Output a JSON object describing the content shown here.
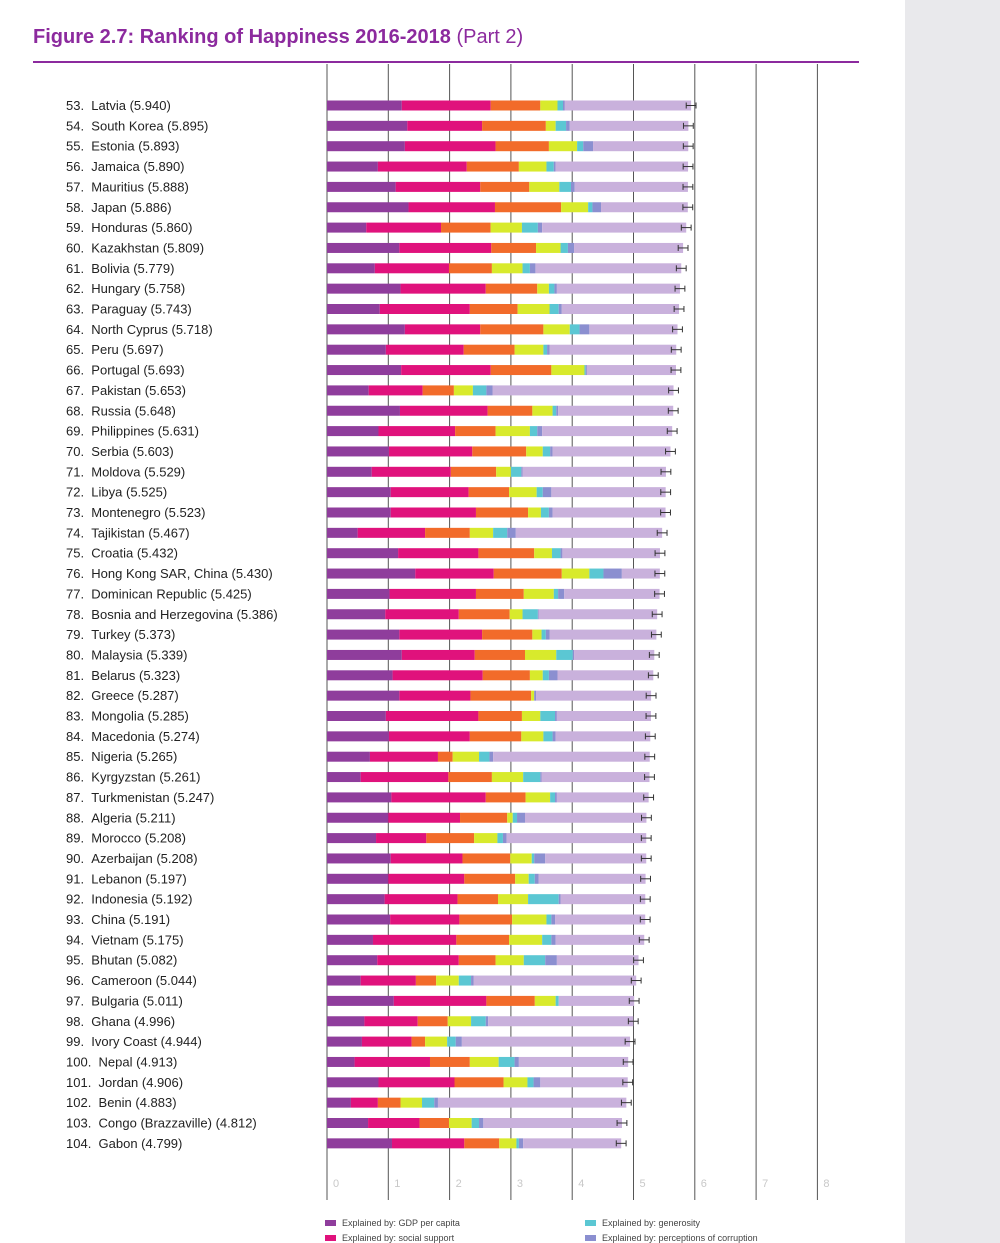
{
  "figure": {
    "title": "Figure 2.7: Ranking of Happiness 2016-2018",
    "title_suffix": "(Part 2)"
  },
  "chart_data": {
    "type": "bar",
    "orientation": "horizontal",
    "stacked": true,
    "title": "Figure 2.7: Ranking of Happiness 2016-2018 (Part 2)",
    "xlim": [
      0,
      8
    ],
    "x_ticks": [
      "0",
      "1",
      "2",
      "3",
      "4",
      "5",
      "6",
      "7",
      "8"
    ],
    "colors": {
      "gdp": "#8f3d9c",
      "social": "#e0127c",
      "health": "#f26b2a",
      "freedom": "#d8ea2c",
      "generosity": "#5bc7d3",
      "corruption": "#8b8fd0",
      "dystopia": "#c9b1dc",
      "ci": "#333333",
      "grid": "#555555"
    },
    "legend": [
      {
        "key": "gdp",
        "label": "Explained by: GDP per capita"
      },
      {
        "key": "generosity",
        "label": "Explained by: generosity"
      },
      {
        "key": "social",
        "label": "Explained by: social support"
      },
      {
        "key": "corruption",
        "label": "Explained by: perceptions of corruption"
      }
    ],
    "series_order": [
      "gdp",
      "social",
      "health",
      "freedom",
      "generosity",
      "corruption",
      "dystopia"
    ],
    "rows": [
      {
        "rank": "53.",
        "country": "Latvia",
        "score": 5.94,
        "gdp": 1.22,
        "social": 1.45,
        "health": 0.81,
        "freedom": 0.28,
        "generosity": 0.09,
        "corruption": 0.03
      },
      {
        "rank": "54.",
        "country": "South Korea",
        "score": 5.895,
        "gdp": 1.31,
        "social": 1.22,
        "health": 1.04,
        "freedom": 0.16,
        "generosity": 0.17,
        "corruption": 0.06
      },
      {
        "rank": "55.",
        "country": "Estonia",
        "score": 5.893,
        "gdp": 1.27,
        "social": 1.48,
        "health": 0.87,
        "freedom": 0.46,
        "generosity": 0.1,
        "corruption": 0.16
      },
      {
        "rank": "56.",
        "country": "Jamaica",
        "score": 5.89,
        "gdp": 0.83,
        "social": 1.45,
        "health": 0.85,
        "freedom": 0.45,
        "generosity": 0.12,
        "corruption": 0.03
      },
      {
        "rank": "57.",
        "country": "Mauritius",
        "score": 5.888,
        "gdp": 1.12,
        "social": 1.38,
        "health": 0.8,
        "freedom": 0.49,
        "generosity": 0.19,
        "corruption": 0.06
      },
      {
        "rank": "58.",
        "country": "Japan",
        "score": 5.886,
        "gdp": 1.33,
        "social": 1.41,
        "health": 1.08,
        "freedom": 0.44,
        "generosity": 0.07,
        "corruption": 0.14
      },
      {
        "rank": "59.",
        "country": "Honduras",
        "score": 5.86,
        "gdp": 0.64,
        "social": 1.22,
        "health": 0.81,
        "freedom": 0.51,
        "generosity": 0.26,
        "corruption": 0.07
      },
      {
        "rank": "60.",
        "country": "Kazakhstan",
        "score": 5.809,
        "gdp": 1.18,
        "social": 1.5,
        "health": 0.73,
        "freedom": 0.4,
        "generosity": 0.12,
        "corruption": 0.1
      },
      {
        "rank": "61.",
        "country": "Bolivia",
        "score": 5.779,
        "gdp": 0.78,
        "social": 1.21,
        "health": 0.7,
        "freedom": 0.5,
        "generosity": 0.12,
        "corruption": 0.09
      },
      {
        "rank": "62.",
        "country": "Hungary",
        "score": 5.758,
        "gdp": 1.2,
        "social": 1.39,
        "health": 0.84,
        "freedom": 0.19,
        "generosity": 0.09,
        "corruption": 0.04
      },
      {
        "rank": "63.",
        "country": "Paraguay",
        "score": 5.743,
        "gdp": 0.86,
        "social": 1.47,
        "health": 0.78,
        "freedom": 0.52,
        "generosity": 0.15,
        "corruption": 0.05
      },
      {
        "rank": "64.",
        "country": "North Cyprus",
        "score": 5.718,
        "gdp": 1.27,
        "social": 1.23,
        "health": 1.03,
        "freedom": 0.43,
        "generosity": 0.16,
        "corruption": 0.16
      },
      {
        "rank": "65.",
        "country": "Peru",
        "score": 5.697,
        "gdp": 0.96,
        "social": 1.27,
        "health": 0.83,
        "freedom": 0.47,
        "generosity": 0.06,
        "corruption": 0.04
      },
      {
        "rank": "66.",
        "country": "Portugal",
        "score": 5.693,
        "gdp": 1.21,
        "social": 1.46,
        "health": 0.99,
        "freedom": 0.54,
        "generosity": 0.02,
        "corruption": 0.02
      },
      {
        "rank": "67.",
        "country": "Pakistan",
        "score": 5.653,
        "gdp": 0.68,
        "social": 0.88,
        "health": 0.51,
        "freedom": 0.31,
        "generosity": 0.22,
        "corruption": 0.1
      },
      {
        "rank": "68.",
        "country": "Russia",
        "score": 5.648,
        "gdp": 1.19,
        "social": 1.43,
        "health": 0.73,
        "freedom": 0.33,
        "generosity": 0.06,
        "corruption": 0.03
      },
      {
        "rank": "69.",
        "country": "Philippines",
        "score": 5.631,
        "gdp": 0.84,
        "social": 1.25,
        "health": 0.66,
        "freedom": 0.56,
        "generosity": 0.12,
        "corruption": 0.08
      },
      {
        "rank": "70.",
        "country": "Serbia",
        "score": 5.603,
        "gdp": 1.01,
        "social": 1.36,
        "health": 0.88,
        "freedom": 0.27,
        "generosity": 0.12,
        "corruption": 0.04
      },
      {
        "rank": "71.",
        "country": "Moldova",
        "score": 5.529,
        "gdp": 0.73,
        "social": 1.29,
        "health": 0.74,
        "freedom": 0.24,
        "generosity": 0.17,
        "corruption": 0.02
      },
      {
        "rank": "72.",
        "country": "Libya",
        "score": 5.525,
        "gdp": 1.04,
        "social": 1.27,
        "health": 0.66,
        "freedom": 0.45,
        "generosity": 0.1,
        "corruption": 0.14
      },
      {
        "rank": "73.",
        "country": "Montenegro",
        "score": 5.523,
        "gdp": 1.04,
        "social": 1.39,
        "health": 0.85,
        "freedom": 0.21,
        "generosity": 0.13,
        "corruption": 0.06
      },
      {
        "rank": "74.",
        "country": "Tajikistan",
        "score": 5.467,
        "gdp": 0.5,
        "social": 1.1,
        "health": 0.73,
        "freedom": 0.38,
        "generosity": 0.23,
        "corruption": 0.14
      },
      {
        "rank": "75.",
        "country": "Croatia",
        "score": 5.432,
        "gdp": 1.16,
        "social": 1.31,
        "health": 0.91,
        "freedom": 0.29,
        "generosity": 0.14,
        "corruption": 0.03
      },
      {
        "rank": "76.",
        "country": "Hong Kong SAR, China",
        "score": 5.43,
        "gdp": 1.44,
        "social": 1.28,
        "health": 1.11,
        "freedom": 0.45,
        "generosity": 0.23,
        "corruption": 0.3
      },
      {
        "rank": "77.",
        "country": "Dominican Republic",
        "score": 5.425,
        "gdp": 1.02,
        "social": 1.41,
        "health": 0.78,
        "freedom": 0.49,
        "generosity": 0.07,
        "corruption": 0.1
      },
      {
        "rank": "78.",
        "country": "Bosnia and Herzegovina",
        "score": 5.386,
        "gdp": 0.95,
        "social": 1.2,
        "health": 0.83,
        "freedom": 0.21,
        "generosity": 0.25,
        "corruption": 0.01
      },
      {
        "rank": "79.",
        "country": "Turkey",
        "score": 5.373,
        "gdp": 1.18,
        "social": 1.35,
        "health": 0.82,
        "freedom": 0.15,
        "generosity": 0.07,
        "corruption": 0.06
      },
      {
        "rank": "80.",
        "country": "Malaysia",
        "score": 5.339,
        "gdp": 1.22,
        "social": 1.19,
        "health": 0.82,
        "freedom": 0.51,
        "generosity": 0.27,
        "corruption": 0.02
      },
      {
        "rank": "81.",
        "country": "Belarus",
        "score": 5.323,
        "gdp": 1.07,
        "social": 1.47,
        "health": 0.77,
        "freedom": 0.21,
        "generosity": 0.1,
        "corruption": 0.14
      },
      {
        "rank": "82.",
        "country": "Greece",
        "score": 5.287,
        "gdp": 1.18,
        "social": 1.16,
        "health": 0.99,
        "freedom": 0.05,
        "generosity": 0.0,
        "corruption": 0.03
      },
      {
        "rank": "83.",
        "country": "Mongolia",
        "score": 5.285,
        "gdp": 0.96,
        "social": 1.51,
        "health": 0.71,
        "freedom": 0.3,
        "generosity": 0.24,
        "corruption": 0.03
      },
      {
        "rank": "84.",
        "country": "Macedonia",
        "score": 5.274,
        "gdp": 1.01,
        "social": 1.32,
        "health": 0.84,
        "freedom": 0.36,
        "generosity": 0.15,
        "corruption": 0.05
      },
      {
        "rank": "85.",
        "country": "Nigeria",
        "score": 5.265,
        "gdp": 0.7,
        "social": 1.11,
        "health": 0.24,
        "freedom": 0.43,
        "generosity": 0.17,
        "corruption": 0.06
      },
      {
        "rank": "86.",
        "country": "Kyrgyzstan",
        "score": 5.261,
        "gdp": 0.55,
        "social": 1.43,
        "health": 0.71,
        "freedom": 0.51,
        "generosity": 0.28,
        "corruption": 0.02
      },
      {
        "rank": "87.",
        "country": "Turkmenistan",
        "score": 5.247,
        "gdp": 1.05,
        "social": 1.54,
        "health": 0.65,
        "freedom": 0.4,
        "generosity": 0.08,
        "corruption": 0.03
      },
      {
        "rank": "88.",
        "country": "Algeria",
        "score": 5.211,
        "gdp": 1.0,
        "social": 1.17,
        "health": 0.77,
        "freedom": 0.09,
        "generosity": 0.07,
        "corruption": 0.13
      },
      {
        "rank": "89.",
        "country": "Morocco",
        "score": 5.208,
        "gdp": 0.8,
        "social": 0.82,
        "health": 0.78,
        "freedom": 0.38,
        "generosity": 0.09,
        "corruption": 0.06
      },
      {
        "rank": "90.",
        "country": "Azerbaijan",
        "score": 5.208,
        "gdp": 1.04,
        "social": 1.17,
        "health": 0.78,
        "freedom": 0.35,
        "generosity": 0.04,
        "corruption": 0.18
      },
      {
        "rank": "91.",
        "country": "Lebanon",
        "score": 5.197,
        "gdp": 1.0,
        "social": 1.24,
        "health": 0.83,
        "freedom": 0.22,
        "generosity": 0.1,
        "corruption": 0.06
      },
      {
        "rank": "92.",
        "country": "Indonesia",
        "score": 5.192,
        "gdp": 0.94,
        "social": 1.19,
        "health": 0.66,
        "freedom": 0.49,
        "generosity": 0.5,
        "corruption": 0.03
      },
      {
        "rank": "93.",
        "country": "China",
        "score": 5.191,
        "gdp": 1.03,
        "social": 1.13,
        "health": 0.86,
        "freedom": 0.56,
        "generosity": 0.08,
        "corruption": 0.06
      },
      {
        "rank": "94.",
        "country": "Vietnam",
        "score": 5.175,
        "gdp": 0.75,
        "social": 1.36,
        "health": 0.86,
        "freedom": 0.54,
        "generosity": 0.15,
        "corruption": 0.07
      },
      {
        "rank": "95.",
        "country": "Bhutan",
        "score": 5.082,
        "gdp": 0.82,
        "social": 1.33,
        "health": 0.6,
        "freedom": 0.46,
        "generosity": 0.35,
        "corruption": 0.19
      },
      {
        "rank": "96.",
        "country": "Cameroon",
        "score": 5.044,
        "gdp": 0.55,
        "social": 0.9,
        "health": 0.33,
        "freedom": 0.37,
        "generosity": 0.2,
        "corruption": 0.04
      },
      {
        "rank": "97.",
        "country": "Bulgaria",
        "score": 5.011,
        "gdp": 1.09,
        "social": 1.51,
        "health": 0.79,
        "freedom": 0.34,
        "generosity": 0.05,
        "corruption": 0.0
      },
      {
        "rank": "98.",
        "country": "Ghana",
        "score": 4.996,
        "gdp": 0.61,
        "social": 0.87,
        "health": 0.49,
        "freedom": 0.38,
        "generosity": 0.24,
        "corruption": 0.04
      },
      {
        "rank": "99.",
        "country": "Ivory Coast",
        "score": 4.944,
        "gdp": 0.57,
        "social": 0.81,
        "health": 0.22,
        "freedom": 0.36,
        "generosity": 0.14,
        "corruption": 0.1
      },
      {
        "rank": "100.",
        "country": "Nepal",
        "score": 4.913,
        "gdp": 0.45,
        "social": 1.23,
        "health": 0.65,
        "freedom": 0.47,
        "generosity": 0.26,
        "corruption": 0.07
      },
      {
        "rank": "101.",
        "country": "Jordan",
        "score": 4.906,
        "gdp": 0.84,
        "social": 1.24,
        "health": 0.8,
        "freedom": 0.39,
        "generosity": 0.1,
        "corruption": 0.11
      },
      {
        "rank": "102.",
        "country": "Benin",
        "score": 4.883,
        "gdp": 0.39,
        "social": 0.44,
        "health": 0.37,
        "freedom": 0.35,
        "generosity": 0.2,
        "corruption": 0.06
      },
      {
        "rank": "103.",
        "country": "Congo (Brazzaville)",
        "score": 4.812,
        "gdp": 0.67,
        "social": 0.84,
        "health": 0.48,
        "freedom": 0.37,
        "generosity": 0.12,
        "corruption": 0.07
      },
      {
        "rank": "104.",
        "country": "Gabon",
        "score": 4.799,
        "gdp": 1.06,
        "social": 1.18,
        "health": 0.57,
        "freedom": 0.28,
        "generosity": 0.04,
        "corruption": 0.07
      }
    ]
  }
}
